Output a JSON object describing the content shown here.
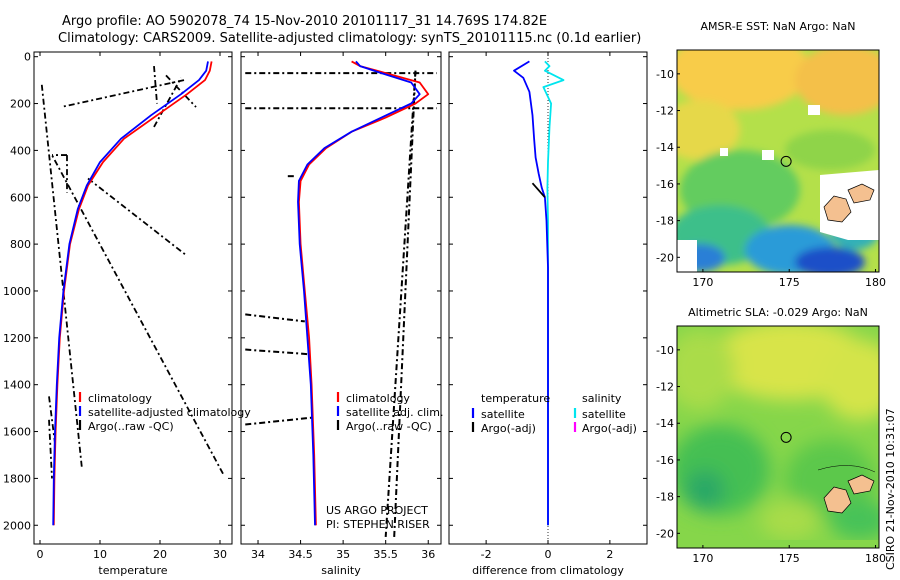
{
  "title": {
    "line1": "Argo profile: AO 5902078_74 15-Nov-2010 20101117_31 14.769S 174.82E",
    "line2": "Climatology: CARS2009. Satellite-adjusted climatology: synTS_20101115.nc (0.1d earlier)"
  },
  "colors": {
    "climatology": "#ff0000",
    "satellite": "#0000ff",
    "argo": "#000000",
    "sal_satellite": "#00e5ee",
    "sal_argo_adj": "#ff00ff"
  },
  "chart_data": [
    {
      "type": "line",
      "id": "temperature",
      "xlabel": "temperature",
      "ylabel": "",
      "xlim": [
        -1,
        32
      ],
      "ylim": [
        2080,
        -20
      ],
      "xticks": [
        0,
        10,
        20,
        30
      ],
      "xticklabels": [
        "0",
        "10",
        "20",
        "30"
      ],
      "yticks": [
        0,
        200,
        400,
        600,
        800,
        1000,
        1200,
        1400,
        1600,
        1800,
        2000
      ],
      "yticklabels": [
        "0",
        "200",
        "400",
        "600",
        "800",
        "1000",
        "1200",
        "1400",
        "1600",
        "1800",
        "2000"
      ],
      "legend": [
        "climatology",
        "satellite-adjusted climatology",
        "Argo(..raw -QC)"
      ],
      "series": [
        {
          "name": "climatology",
          "x": [
            28.6,
            28.3,
            27.5,
            24.5,
            19.5,
            14,
            10.5,
            8,
            6.5,
            5,
            4,
            3.3,
            2.9,
            2.6,
            2.4,
            2.3
          ],
          "y": [
            20,
            60,
            100,
            160,
            250,
            350,
            450,
            550,
            650,
            800,
            1000,
            1200,
            1400,
            1600,
            1800,
            2000
          ]
        },
        {
          "name": "satellite-adjusted climatology",
          "x": [
            28,
            27.7,
            26.5,
            23.5,
            18.5,
            13.5,
            10,
            7.8,
            6.3,
            4.9,
            3.9,
            3.2,
            2.8,
            2.5,
            2.3,
            2.2
          ],
          "y": [
            20,
            60,
            100,
            160,
            250,
            350,
            450,
            550,
            650,
            800,
            1000,
            1200,
            1400,
            1600,
            1800,
            2000
          ]
        },
        {
          "name": "Argo(..raw -QC)",
          "x": [
            19,
            19.5,
            21,
            26,
            24,
            3.5,
            19,
            23.5,
            4.5,
            4.5,
            8,
            24.5,
            4.5,
            2,
            30.5,
            2,
            1.5,
            2.5,
            0.3,
            7,
            1.5,
            2
          ],
          "y": [
            40,
            200,
            80,
            215,
            100,
            215,
            300,
            90,
            420,
            580,
            520,
            850,
            420,
            420,
            1780,
            420,
            1450,
            1650,
            120,
            1760,
            1550,
            1800
          ]
        }
      ],
      "annotation": ""
    },
    {
      "type": "line",
      "id": "salinity",
      "xlabel": "salinity",
      "xlim": [
        33.8,
        36.15
      ],
      "ylim": [
        2080,
        -20
      ],
      "xticks": [
        34,
        34.5,
        35,
        35.5,
        36
      ],
      "xticklabels": [
        "34",
        "34.5",
        "35",
        "35.5",
        "36"
      ],
      "legend": [
        "climatology",
        "satellite adj. clim.",
        "Argo(..raw -QC)"
      ],
      "series": [
        {
          "name": "climatology",
          "x": [
            35.1,
            35.2,
            35.5,
            35.9,
            36.0,
            35.85,
            35.5,
            35.1,
            34.8,
            34.6,
            34.5,
            34.48,
            34.5,
            34.55,
            34.6,
            34.63,
            34.66,
            34.68
          ],
          "y": [
            20,
            40,
            70,
            110,
            160,
            200,
            260,
            320,
            390,
            460,
            530,
            620,
            800,
            1000,
            1200,
            1400,
            1700,
            2000
          ]
        },
        {
          "name": "satellite adj. clim.",
          "x": [
            35.15,
            35.2,
            35.45,
            35.8,
            35.9,
            35.8,
            35.45,
            35.1,
            34.78,
            34.58,
            34.48,
            34.47,
            34.49,
            34.54,
            34.58,
            34.62,
            34.65,
            34.67
          ],
          "y": [
            20,
            40,
            70,
            110,
            160,
            200,
            260,
            320,
            390,
            460,
            530,
            620,
            800,
            1000,
            1200,
            1400,
            1700,
            2000
          ]
        },
        {
          "name": "Argo(..raw -QC)",
          "x": [
            33.85,
            36.1,
            33.85,
            36.1,
            35.85,
            35.5,
            34.35,
            34.45,
            33.85,
            34.55,
            33.85,
            34.6,
            33.85,
            34.65,
            35.6,
            35.85
          ],
          "y": [
            70,
            70,
            220,
            220,
            60,
            2050,
            510,
            510,
            1100,
            1130,
            1250,
            1270,
            1570,
            1540,
            2050,
            60
          ]
        }
      ],
      "annotation": "US ARGO PROJECT\nPI: STEPHEN RISER",
      "annotation_lines": [
        "US ARGO PROJECT",
        "PI: STEPHEN RISER"
      ]
    },
    {
      "type": "line",
      "id": "difference",
      "xlabel": "difference from climatology",
      "xlim": [
        -3.2,
        3.2
      ],
      "ylim": [
        2080,
        -20
      ],
      "xticks": [
        -2,
        0,
        2
      ],
      "xticklabels": [
        "-2",
        "0",
        "2"
      ],
      "legend_left_title": "temperature",
      "legend_right_title": "salinity",
      "legend_left": [
        "satellite",
        "Argo(-adj)"
      ],
      "legend_right": [
        "satellite",
        "Argo(-adj)"
      ],
      "series": [
        {
          "name": "temperature satellite",
          "x": [
            -0.6,
            -1.1,
            -0.8,
            -0.6,
            -0.5,
            -0.45,
            -0.4,
            -0.3,
            -0.2,
            -0.1,
            -0.05,
            0,
            0,
            0,
            0
          ],
          "y": [
            20,
            60,
            90,
            150,
            250,
            350,
            430,
            500,
            560,
            600,
            700,
            900,
            1200,
            1600,
            2000
          ]
        },
        {
          "name": "salinity satellite",
          "x": [
            -0.1,
            0.05,
            -0.1,
            0.5,
            -0.15,
            0.1,
            0.05,
            0,
            -0.02,
            0,
            0,
            0,
            0
          ],
          "y": [
            20,
            40,
            60,
            100,
            130,
            200,
            300,
            450,
            560,
            700,
            1000,
            1500,
            2000
          ]
        },
        {
          "name": "temperature Argo(-adj)",
          "x": [
            -0.5,
            -0.1
          ],
          "y": [
            540,
            600
          ]
        }
      ]
    },
    {
      "type": "heatmap",
      "id": "sst_map",
      "title": "AMSR-E SST: NaN  Argo: NaN",
      "xlim": [
        168.5,
        180.2
      ],
      "ylim": [
        -20.8,
        -8.7
      ],
      "xticks": [
        170,
        175,
        180
      ],
      "xticklabels": [
        "170",
        "175",
        "180"
      ],
      "yticks": [
        -10,
        -12,
        -14,
        -16,
        -18,
        -20
      ],
      "yticklabels": [
        "-10",
        "-12",
        "-14",
        "-16",
        "-18",
        "-20"
      ],
      "marker": {
        "lon": 174.82,
        "lat": -14.769
      }
    },
    {
      "type": "heatmap",
      "id": "sla_map",
      "title": "Altimetric SLA: -0.029  Argo: NaN",
      "xlim": [
        168.5,
        180.2
      ],
      "ylim": [
        -20.8,
        -8.7
      ],
      "xticks": [
        170,
        175,
        180
      ],
      "xticklabels": [
        "170",
        "175",
        "180"
      ],
      "yticks": [
        -10,
        -12,
        -14,
        -16,
        -18,
        -20
      ],
      "yticklabels": [
        "-10",
        "-12",
        "-14",
        "-16",
        "-18",
        "-20"
      ],
      "marker": {
        "lon": 174.82,
        "lat": -14.769
      }
    }
  ],
  "credit": "CSIRO 21-Nov-2010 10:31:07"
}
